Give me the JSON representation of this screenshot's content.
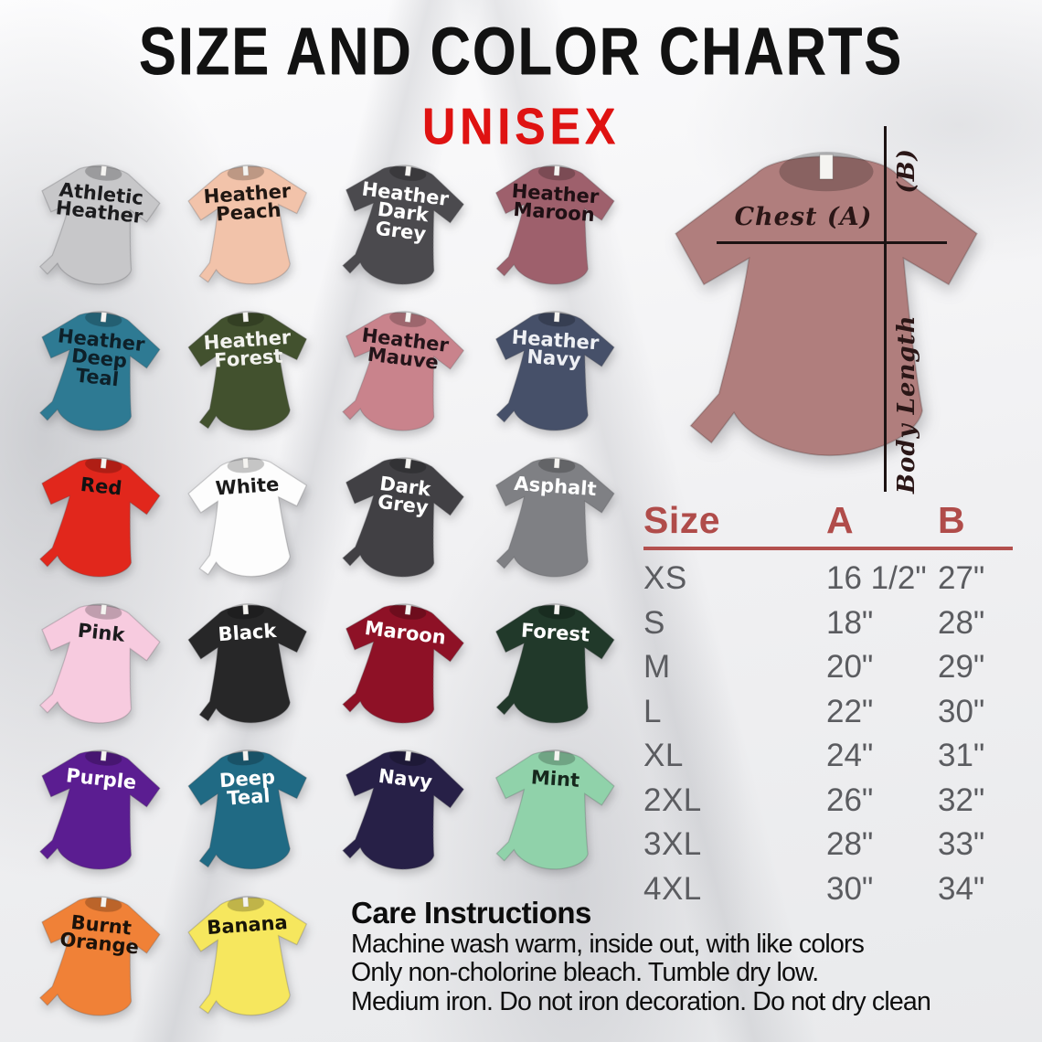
{
  "header": {
    "title": "SIZE AND COLOR CHARTS",
    "subtitle": "UNISEX",
    "title_color": "#121212",
    "subtitle_color": "#df1312"
  },
  "shirts": [
    {
      "label": "Athletic\nHeather",
      "color": "#c7c7c9",
      "text_color": "#1c1c1e"
    },
    {
      "label": "Heather\nPeach",
      "color": "#f2c3aa",
      "text_color": "#201712"
    },
    {
      "label": "Heather\nDark\nGrey",
      "color": "#4b4a4e",
      "text_color": "#ffffff"
    },
    {
      "label": "Heather\nMaroon",
      "color": "#9e606c",
      "text_color": "#1f1014"
    },
    {
      "label": "Heather\nDeep\nTeal",
      "color": "#2e7a93",
      "text_color": "#0e2029"
    },
    {
      "label": "Heather\nForest",
      "color": "#42512e",
      "text_color": "#f2f2ee"
    },
    {
      "label": "Heather\nMauve",
      "color": "#c9838c",
      "text_color": "#241419"
    },
    {
      "label": "Heather\nNavy",
      "color": "#465069",
      "text_color": "#eef0f4"
    },
    {
      "label": "Red",
      "color": "#e1271c",
      "text_color": "#121212"
    },
    {
      "label": "White",
      "color": "#fdfdfd",
      "text_color": "#1a1a1a"
    },
    {
      "label": "Dark\nGrey",
      "color": "#414044",
      "text_color": "#ffffff"
    },
    {
      "label": "Asphalt",
      "color": "#7f8084",
      "text_color": "#ffffff"
    },
    {
      "label": "Pink",
      "color": "#f7cbdf",
      "text_color": "#1b1b1d"
    },
    {
      "label": "Black",
      "color": "#272728",
      "text_color": "#ffffff"
    },
    {
      "label": "Maroon",
      "color": "#8e1126",
      "text_color": "#ffffff"
    },
    {
      "label": "Forest",
      "color": "#21392a",
      "text_color": "#ffffff"
    },
    {
      "label": "Purple",
      "color": "#5b1d91",
      "text_color": "#ffffff"
    },
    {
      "label": "Deep\nTeal",
      "color": "#206a84",
      "text_color": "#ffffff"
    },
    {
      "label": "Navy",
      "color": "#272047",
      "text_color": "#ffffff"
    },
    {
      "label": "Mint",
      "color": "#90d2aa",
      "text_color": "#16281d"
    },
    {
      "label": "Burnt\nOrange",
      "color": "#f08137",
      "text_color": "#1c120a"
    },
    {
      "label": "Banana",
      "color": "#f6e75e",
      "text_color": "#181508"
    }
  ],
  "measure": {
    "shirt_color": "#b07e7d",
    "line_color": "#1c1313",
    "chest_label": "Chest (A)",
    "length_label": "Body Length",
    "length_label_b": "(B)",
    "label_color": "#2a1616"
  },
  "size_chart": {
    "headers": [
      "Size",
      "A",
      "B"
    ],
    "header_color": "#b04c4a",
    "rule_color": "#b3504e",
    "rows": [
      [
        "XS",
        "16 1/2\"",
        "27\""
      ],
      [
        "S",
        "18\"",
        "28\""
      ],
      [
        "M",
        "20\"",
        "29\""
      ],
      [
        "L",
        "22\"",
        "30\""
      ],
      [
        "XL",
        "24\"",
        "31\""
      ],
      [
        "2XL",
        "26\"",
        "32\""
      ],
      [
        "3XL",
        "28\"",
        "33\""
      ],
      [
        "4XL",
        "30\"",
        "34\""
      ]
    ]
  },
  "care": {
    "title": "Care Instructions",
    "lines": [
      "Machine wash warm, inside out, with like colors",
      "Only non-cholorine bleach. Tumble dry low.",
      "Medium iron. Do not iron decoration. Do not dry clean"
    ]
  }
}
